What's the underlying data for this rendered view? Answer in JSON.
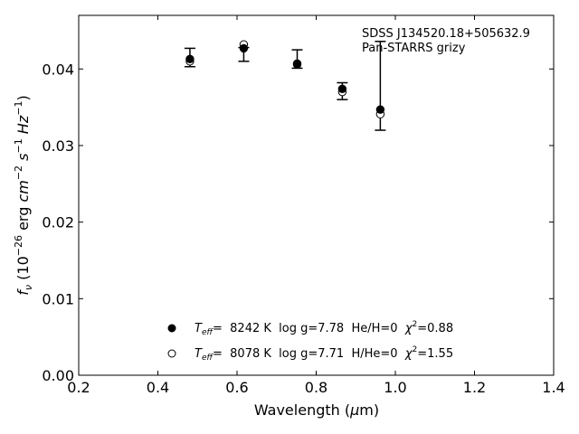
{
  "chart_data": {
    "type": "scatter",
    "xlabel": "Wavelength (μm)",
    "ylabel": "fν (10⁻²⁶ erg cm⁻² s⁻¹ Hz⁻¹)",
    "xlim": [
      0.2,
      1.4
    ],
    "ylim": [
      0.0,
      0.047
    ],
    "xticks": [
      "0.2",
      "0.4",
      "0.6",
      "0.8",
      "1.0",
      "1.2",
      "1.4"
    ],
    "yticks": [
      "0.00",
      "0.01",
      "0.02",
      "0.03",
      "0.04"
    ],
    "grid": false,
    "annotations": [
      "SDSS J134520.18+505632.9",
      "Pan-STARRS grizy"
    ],
    "observed": {
      "x": [
        0.481,
        0.617,
        0.752,
        0.866,
        0.962
      ],
      "y": [
        0.0415,
        0.0419,
        0.0413,
        0.0371,
        0.0378
      ],
      "yerr": [
        0.0012,
        0.0009,
        0.0012,
        0.0011,
        0.0058
      ]
    },
    "series": [
      {
        "name": "T_eff= 8242 K  log g=7.78  He/H=0  χ²=0.88",
        "marker": "filled-circle",
        "x": [
          0.481,
          0.617,
          0.752,
          0.866,
          0.962
        ],
        "y": [
          0.0413,
          0.0427,
          0.0406,
          0.0374,
          0.0347
        ]
      },
      {
        "name": "T_eff= 8078 K  log g=7.71  H/He=0  χ²=1.55",
        "marker": "open-circle",
        "x": [
          0.481,
          0.617,
          0.752,
          0.866,
          0.962
        ],
        "y": [
          0.041,
          0.0432,
          0.0407,
          0.037,
          0.0341
        ]
      }
    ],
    "legend": {
      "placement": "lower-center",
      "entries": [
        {
          "teff_label": "T",
          "teff_sub": "eff",
          "text": "=  8242 K  log g=7.78  He/H=0  ",
          "chi": "χ",
          "chi_sup": "2",
          "chi_value": "=0.88"
        },
        {
          "teff_label": "T",
          "teff_sub": "eff",
          "text": "=  8078 K  log g=7.71  H/He=0  ",
          "chi": "χ",
          "chi_sup": "2",
          "chi_value": "=1.55"
        }
      ]
    }
  }
}
